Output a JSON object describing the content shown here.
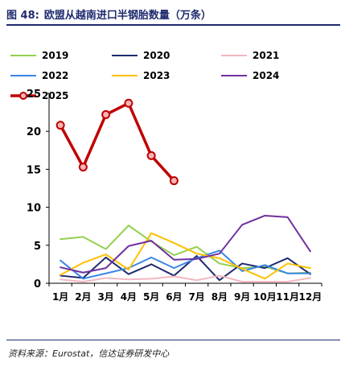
{
  "title": {
    "figure_no": "图 48:",
    "text": "欧盟从越南进口半钢胎数量（万条）"
  },
  "source": "资料来源：Eurostat，信达证券研发中心",
  "chart_data": {
    "type": "line",
    "categories": [
      "1月",
      "2月",
      "3月",
      "4月",
      "5月",
      "6月",
      "7月",
      "8月",
      "9月",
      "10月",
      "11月",
      "12月"
    ],
    "yticks": [
      0,
      5,
      10,
      15,
      20,
      25
    ],
    "ylim": [
      0,
      25
    ],
    "grid": false,
    "legend_position": "top",
    "series": [
      {
        "name": "2019",
        "color": "#92d050",
        "width": 2,
        "marker": false,
        "values": [
          5.8,
          6.1,
          4.5,
          7.6,
          5.5,
          3.7,
          4.8,
          2.6,
          2.0,
          2.2,
          1.3,
          1.4
        ]
      },
      {
        "name": "2020",
        "color": "#1f2b6f",
        "width": 2,
        "marker": false,
        "values": [
          1.0,
          0.7,
          3.4,
          1.2,
          2.5,
          1.0,
          3.6,
          0.4,
          2.6,
          2.0,
          3.3,
          1.2
        ]
      },
      {
        "name": "2021",
        "color": "#f4b6c2",
        "width": 2,
        "marker": false,
        "values": [
          0.5,
          0.2,
          0.7,
          0.5,
          0.6,
          0.9,
          0.4,
          1.0,
          0.2,
          0.2,
          0.2,
          0.7
        ]
      },
      {
        "name": "2022",
        "color": "#3a86e6",
        "width": 2,
        "marker": false,
        "values": [
          3.0,
          0.6,
          1.3,
          2.0,
          3.4,
          2.0,
          3.3,
          4.3,
          1.6,
          2.4,
          1.3,
          1.3
        ]
      },
      {
        "name": "2023",
        "color": "#ffc000",
        "width": 2,
        "marker": false,
        "values": [
          1.1,
          2.7,
          3.8,
          1.8,
          6.6,
          5.3,
          3.9,
          3.3,
          1.9,
          0.6,
          2.6,
          2.0
        ]
      },
      {
        "name": "2024",
        "color": "#7030a0",
        "width": 2,
        "marker": false,
        "values": [
          2.1,
          1.4,
          2.0,
          4.9,
          5.6,
          3.1,
          3.2,
          3.9,
          7.7,
          8.9,
          8.7,
          4.2
        ]
      },
      {
        "name": "2025",
        "color": "#c00000",
        "width": 3.5,
        "marker": true,
        "values": [
          20.8,
          15.3,
          22.2,
          23.7,
          16.8,
          13.5,
          null,
          null,
          null,
          null,
          null,
          null
        ]
      }
    ]
  }
}
